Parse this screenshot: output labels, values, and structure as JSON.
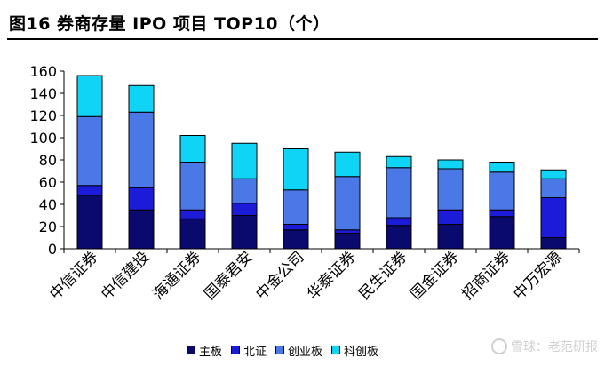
{
  "header": {
    "title": "图16  券商存量 IPO 项目 TOP10（个）"
  },
  "watermark": {
    "text": "雪球：老范研报"
  },
  "chart_data": {
    "type": "bar",
    "stacked": true,
    "categories": [
      "中信证券",
      "中信建投",
      "海通证券",
      "国泰君安",
      "中金公司",
      "华泰证券",
      "民生证券",
      "国金证券",
      "招商证券",
      "中万宏源"
    ],
    "series": [
      {
        "name": "主板",
        "color": "#0a0a6e",
        "values": [
          48,
          35,
          27,
          30,
          17,
          14,
          21,
          22,
          29,
          10
        ]
      },
      {
        "name": "北证",
        "color": "#1b1bd8",
        "values": [
          9,
          20,
          8,
          11,
          5,
          3,
          7,
          13,
          6,
          36
        ]
      },
      {
        "name": "创业板",
        "color": "#4a78e6",
        "values": [
          62,
          68,
          43,
          22,
          31,
          48,
          45,
          37,
          34,
          17
        ]
      },
      {
        "name": "科创板",
        "color": "#10d4f5",
        "values": [
          37,
          24,
          24,
          32,
          37,
          22,
          10,
          8,
          9,
          8
        ]
      }
    ],
    "yticks": [
      0,
      20,
      40,
      60,
      80,
      100,
      120,
      140,
      160
    ],
    "ylim": [
      0,
      160
    ],
    "grid": false,
    "legend": "bottom",
    "title": "",
    "xlabel": "",
    "ylabel": ""
  }
}
